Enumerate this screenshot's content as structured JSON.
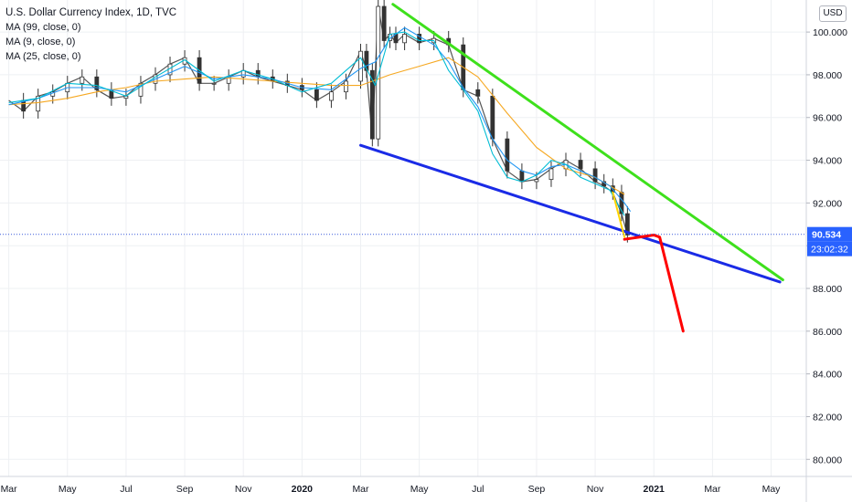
{
  "chart_data": {
    "type": "line",
    "title": "U.S. Dollar Currency Index, 1D, TVC",
    "indicators": [
      "MA (99, close, 0)",
      "MA (9, close, 0)",
      "MA (25, close, 0)"
    ],
    "currency": "USD",
    "ylim": [
      79.2,
      101.5
    ],
    "y_ticks": [
      "100.000",
      "98.000",
      "96.000",
      "94.000",
      "92.000",
      "90.000",
      "88.000",
      "86.000",
      "84.000",
      "82.000",
      "80.000"
    ],
    "y_tick_values": [
      100,
      98,
      96,
      94,
      92,
      90,
      88,
      86,
      84,
      82,
      80
    ],
    "x_ticks": [
      "Mar",
      "May",
      "Jul",
      "Sep",
      "Nov",
      "2020",
      "Mar",
      "May",
      "Jul",
      "Sep",
      "Nov",
      "2021",
      "Mar",
      "May"
    ],
    "x_tick_months": [
      0,
      2,
      4,
      6,
      8,
      10,
      12,
      14,
      16,
      18,
      20,
      22,
      24,
      26
    ],
    "x_range_months": [
      -0.3,
      27.2
    ],
    "grid": true,
    "price_label": "90.534",
    "last_price": 90.534,
    "countdown_label": "23:02:32",
    "series": [
      {
        "role": "price",
        "color": "#555555",
        "x": [
          0,
          0.5,
          1,
          1.5,
          2,
          2.5,
          3,
          3.5,
          4,
          4.5,
          5,
          5.5,
          6,
          6.5,
          7,
          7.5,
          8,
          8.5,
          9,
          9.5,
          10,
          10.5,
          11,
          11.5,
          12,
          12.2,
          12.4,
          12.6,
          12.8,
          13,
          13.2,
          13.5,
          14,
          14.5,
          15,
          15.5,
          16,
          16.5,
          17,
          17.5,
          18,
          18.5,
          19,
          19.5,
          20,
          20.3,
          20.6,
          20.9,
          21.1
        ],
        "values": [
          96.8,
          96.3,
          97.0,
          97.2,
          97.6,
          97.9,
          97.3,
          96.9,
          97.0,
          97.6,
          98.0,
          98.5,
          98.8,
          97.6,
          97.6,
          97.9,
          98.2,
          97.9,
          97.7,
          97.5,
          97.3,
          96.8,
          97.2,
          97.7,
          99.1,
          98.2,
          95.0,
          101.2,
          99.6,
          99.9,
          99.5,
          99.9,
          99.5,
          99.7,
          99.4,
          97.3,
          97.0,
          95.0,
          93.5,
          93.0,
          93.1,
          93.6,
          94.0,
          93.6,
          93.0,
          92.8,
          92.5,
          91.5,
          90.5
        ]
      },
      {
        "role": "MA 99",
        "color": "#f6a821",
        "x": [
          0,
          1,
          2,
          3,
          4,
          5,
          6,
          7,
          8,
          9,
          10,
          11,
          12,
          13,
          14,
          15,
          16,
          17,
          18,
          19,
          20,
          21
        ],
        "values": [
          96.6,
          96.7,
          96.9,
          97.2,
          97.4,
          97.7,
          97.8,
          97.9,
          97.8,
          97.7,
          97.6,
          97.5,
          97.5,
          98.0,
          98.4,
          98.8,
          97.9,
          96.2,
          94.6,
          93.6,
          93.2,
          92.4
        ]
      },
      {
        "role": "MA 25",
        "color": "#2196f3",
        "x": [
          0,
          1,
          2,
          3,
          4,
          5,
          6,
          7,
          8,
          9,
          10,
          11,
          12,
          12.5,
          13,
          13.5,
          14,
          14.5,
          15,
          15.5,
          16,
          16.5,
          17,
          17.5,
          18,
          18.5,
          19,
          19.5,
          20,
          20.5,
          21,
          21.2
        ],
        "values": [
          96.6,
          96.9,
          97.4,
          97.4,
          97.2,
          97.8,
          98.4,
          97.8,
          98.0,
          97.8,
          97.4,
          97.3,
          98.3,
          98.6,
          99.7,
          100.2,
          99.8,
          99.4,
          98.6,
          97.4,
          96.5,
          95.0,
          94.0,
          93.5,
          93.3,
          93.7,
          93.8,
          93.5,
          93.2,
          92.8,
          92.0,
          91.6
        ]
      },
      {
        "role": "MA 9",
        "color": "#00bcd4",
        "x": [
          0,
          1,
          2,
          3,
          4,
          5,
          6,
          7,
          8,
          9,
          10,
          11,
          12,
          12.5,
          13,
          13.5,
          14,
          14.5,
          15,
          15.5,
          16,
          16.5,
          17,
          17.5,
          18,
          18.5,
          19,
          19.5,
          20,
          20.5,
          21
        ],
        "values": [
          96.7,
          96.9,
          97.6,
          97.5,
          97.0,
          97.9,
          98.7,
          97.7,
          98.2,
          97.8,
          97.2,
          97.6,
          98.8,
          97.5,
          99.9,
          100.0,
          99.6,
          99.6,
          98.2,
          97.3,
          96.3,
          94.3,
          93.2,
          93.0,
          93.3,
          94.0,
          93.8,
          93.2,
          92.9,
          92.6,
          91.4
        ]
      }
    ],
    "drawings": [
      {
        "name": "green-trendline",
        "color": "#3ee01c",
        "width": 3,
        "x1": 13.1,
        "y1": 101.3,
        "x2": 26.4,
        "y2": 88.4
      },
      {
        "name": "blue-trendline",
        "color": "#1a2be6",
        "width": 3,
        "x1": 12.0,
        "y1": 94.7,
        "x2": 26.3,
        "y2": 88.3
      },
      {
        "name": "red-projection",
        "color": "#ff0000",
        "width": 3,
        "x": [
          21.0,
          22.0,
          22.2,
          23.0
        ],
        "values": [
          90.3,
          90.5,
          90.4,
          86.0
        ]
      },
      {
        "name": "yellow-segment",
        "color": "#ffd400",
        "width": 2,
        "x": [
          20.6,
          21.0
        ],
        "values": [
          92.5,
          90.4
        ]
      }
    ]
  }
}
